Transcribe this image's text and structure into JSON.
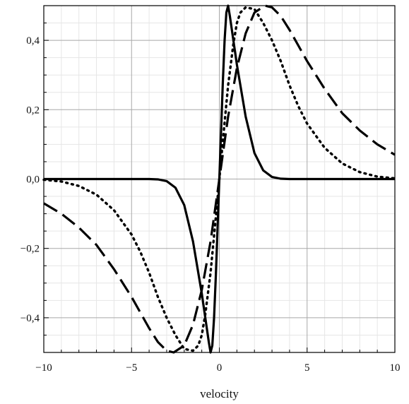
{
  "chart_data": {
    "type": "line",
    "title": "",
    "xlabel": "velocity",
    "ylabel": "",
    "xlim": [
      -10,
      10
    ],
    "ylim": [
      -0.5,
      0.5
    ],
    "x_ticks": [
      -10,
      -5,
      0,
      5,
      10
    ],
    "x_tick_labels": [
      "−10",
      "−5",
      "0",
      "5",
      "10"
    ],
    "y_ticks": [
      -0.4,
      -0.2,
      0.0,
      0.2,
      0.4
    ],
    "y_tick_labels": [
      "−0,4",
      "−0,2",
      "0,0",
      "0,2",
      "0,4"
    ],
    "grid": true,
    "legend": "none",
    "series": [
      {
        "style": "solid",
        "color": "#000000",
        "x": [
          -10,
          -5,
          -4,
          -3.5,
          -3,
          -2.5,
          -2,
          -1.5,
          -1.2,
          -1,
          -0.8,
          -0.6,
          -0.5,
          -0.4,
          -0.3,
          -0.2,
          -0.1,
          0,
          0.1,
          0.2,
          0.3,
          0.4,
          0.5,
          0.6,
          0.8,
          1,
          1.2,
          1.5,
          2,
          2.5,
          3,
          3.5,
          4,
          5,
          10
        ],
        "y": [
          0,
          0,
          0,
          -0.001,
          -0.006,
          -0.025,
          -0.075,
          -0.18,
          -0.27,
          -0.33,
          -0.4,
          -0.47,
          -0.5,
          -0.48,
          -0.4,
          -0.28,
          -0.14,
          0,
          0.14,
          0.28,
          0.4,
          0.48,
          0.5,
          0.47,
          0.4,
          0.33,
          0.27,
          0.18,
          0.075,
          0.025,
          0.006,
          0.001,
          0,
          0,
          0
        ]
      },
      {
        "style": "dotted",
        "color": "#000000",
        "x": [
          -10,
          -9,
          -8,
          -7,
          -6,
          -5,
          -4.5,
          -4,
          -3.5,
          -3,
          -2.5,
          -2,
          -1.5,
          -1.2,
          -1,
          -0.8,
          -0.5,
          -0.2,
          0,
          0.2,
          0.5,
          0.8,
          1,
          1.2,
          1.5,
          2,
          2.5,
          3,
          3.5,
          4,
          4.5,
          5,
          6,
          7,
          8,
          9,
          10
        ],
        "y": [
          -0.002,
          -0.007,
          -0.02,
          -0.045,
          -0.09,
          -0.16,
          -0.21,
          -0.27,
          -0.34,
          -0.4,
          -0.45,
          -0.49,
          -0.495,
          -0.48,
          -0.45,
          -0.39,
          -0.27,
          -0.11,
          0,
          0.11,
          0.27,
          0.39,
          0.45,
          0.48,
          0.495,
          0.49,
          0.45,
          0.4,
          0.34,
          0.27,
          0.21,
          0.16,
          0.09,
          0.045,
          0.02,
          0.007,
          0.002
        ]
      },
      {
        "style": "dashed",
        "color": "#000000",
        "x": [
          -10,
          -9,
          -8,
          -7,
          -6,
          -5,
          -4,
          -3.5,
          -3,
          -2.6,
          -2,
          -1.5,
          -1,
          -0.5,
          0,
          0.5,
          1,
          1.5,
          2,
          2.6,
          3,
          3.5,
          4,
          5,
          6,
          7,
          8,
          9,
          10
        ],
        "y": [
          -0.07,
          -0.1,
          -0.14,
          -0.19,
          -0.26,
          -0.34,
          -0.43,
          -0.47,
          -0.495,
          -0.5,
          -0.48,
          -0.42,
          -0.32,
          -0.18,
          0,
          0.18,
          0.32,
          0.42,
          0.48,
          0.5,
          0.495,
          0.47,
          0.43,
          0.34,
          0.26,
          0.19,
          0.14,
          0.1,
          0.07
        ]
      }
    ]
  }
}
